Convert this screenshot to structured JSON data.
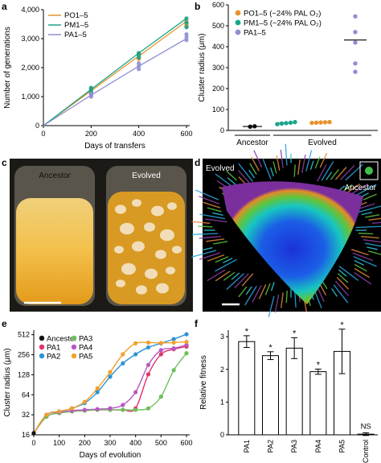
{
  "panel_labels": [
    "a",
    "b",
    "c",
    "d",
    "e",
    "f"
  ],
  "colors": {
    "PO": "#e8922c",
    "PM": "#1aa58b",
    "PA": "#8f8fd4",
    "ancestor": "#111111",
    "PA1": "#e0336b",
    "PA2": "#2d93d4",
    "PA3": "#6cc05a",
    "PA4": "#b658c4",
    "PA5": "#f1a12a"
  },
  "chart_data": [
    {
      "panel": "a",
      "type": "line",
      "xlabel": "Days of transfers",
      "ylabel": "Number of generations",
      "xlim": [
        0,
        600
      ],
      "ylim": [
        0,
        4000
      ],
      "xticks": [
        0,
        200,
        400,
        600
      ],
      "yticks": [
        0,
        1000,
        2000,
        3000,
        4000
      ],
      "ytick_labels": [
        "0",
        "1,000",
        "2,000",
        "3,000",
        "4,000"
      ],
      "legend": "top-left",
      "series": [
        {
          "name": "PO1–5",
          "color_key": "PO",
          "x": [
            0,
            200,
            400,
            600
          ],
          "y": [
            0,
            1200,
            2400,
            3600
          ],
          "points": [
            [
              200,
              1100
            ],
            [
              200,
              1150
            ],
            [
              200,
              1200
            ],
            [
              200,
              1250
            ],
            [
              200,
              1300
            ],
            [
              400,
              2300
            ],
            [
              400,
              2350
            ],
            [
              400,
              2400
            ],
            [
              400,
              2450
            ],
            [
              400,
              2500
            ],
            [
              600,
              3400
            ],
            [
              600,
              3450
            ],
            [
              600,
              3500
            ],
            [
              600,
              3550
            ],
            [
              600,
              3600
            ]
          ]
        },
        {
          "name": "PM1–5",
          "color_key": "PM",
          "x": [
            0,
            200,
            400,
            600
          ],
          "y": [
            0,
            1250,
            2500,
            3700
          ],
          "points": [
            [
              200,
              1150
            ],
            [
              200,
              1250
            ],
            [
              200,
              1300
            ],
            [
              400,
              2350
            ],
            [
              400,
              2450
            ],
            [
              400,
              2500
            ],
            [
              600,
              3400
            ],
            [
              600,
              3550
            ],
            [
              600,
              3700
            ]
          ]
        },
        {
          "name": "PA1–5",
          "color_key": "PA",
          "x": [
            0,
            200,
            400,
            600
          ],
          "y": [
            0,
            1050,
            2050,
            3000
          ],
          "points": [
            [
              200,
              1000
            ],
            [
              200,
              1050
            ],
            [
              200,
              1100
            ],
            [
              400,
              1950
            ],
            [
              400,
              2050
            ],
            [
              400,
              2150
            ],
            [
              600,
              2950
            ],
            [
              600,
              3050
            ],
            [
              600,
              3150
            ]
          ]
        }
      ]
    },
    {
      "panel": "b",
      "type": "scatter",
      "ylabel": "Cluster radius (μm)",
      "ylim": [
        0,
        600
      ],
      "yticks": [
        0,
        100,
        200,
        300,
        400,
        500,
        600
      ],
      "group_labels": [
        "Ancestor",
        "Evolved"
      ],
      "legend": "top-left",
      "legend_entries": [
        "PO1–5 (~24% PAL O₂)",
        "PM1–5 (~24% PAL O₂)",
        "PA1–5"
      ],
      "groups": [
        {
          "name": "Ancestor",
          "color_key": "ancestor",
          "values": [
            18,
            20
          ],
          "mean": 19
        },
        {
          "name": "PO1–5 (~24% PAL O₂)",
          "color_key": "PM",
          "values": [
            30,
            33,
            35,
            37,
            40
          ],
          "mean": 35
        },
        {
          "name": "PM1–5 (~24% PAL O₂)",
          "color_key": "PO",
          "values": [
            36,
            37,
            38,
            39,
            40
          ],
          "mean": 38
        },
        {
          "name": "PA1–5",
          "color_key": "PA",
          "values": [
            280,
            320,
            420,
            470,
            545
          ],
          "mean": 432
        }
      ]
    },
    {
      "panel": "e",
      "type": "line",
      "xlabel": "Days of evolution",
      "ylabel": "Cluster radius (μm)",
      "yscale": "log2",
      "xlim": [
        0,
        600
      ],
      "ylim": [
        16,
        600
      ],
      "xticks": [
        0,
        100,
        200,
        300,
        400,
        500,
        600
      ],
      "yticks": [
        16,
        32,
        64,
        128,
        256,
        512
      ],
      "legend": "top-left",
      "series": [
        {
          "name": "Ancestor",
          "color_key": "ancestor",
          "x": [
            0
          ],
          "y": [
            17
          ]
        },
        {
          "name": "PA1",
          "color_key": "PA1",
          "x": [
            0,
            50,
            100,
            150,
            200,
            250,
            300,
            350,
            400,
            450,
            500,
            550,
            600
          ],
          "y": [
            17,
            30,
            34,
            36,
            37,
            38,
            38,
            38,
            40,
            130,
            260,
            310,
            340
          ]
        },
        {
          "name": "PA2",
          "color_key": "PA2",
          "x": [
            0,
            50,
            100,
            150,
            200,
            250,
            300,
            350,
            400,
            450,
            500,
            550,
            600
          ],
          "y": [
            17,
            32,
            36,
            40,
            48,
            70,
            120,
            190,
            260,
            330,
            380,
            440,
            520
          ]
        },
        {
          "name": "PA3",
          "color_key": "PA3",
          "x": [
            0,
            50,
            100,
            150,
            200,
            250,
            300,
            350,
            400,
            450,
            500,
            550,
            600
          ],
          "y": [
            17,
            30,
            34,
            36,
            37,
            38,
            38,
            38,
            38,
            40,
            60,
            150,
            270
          ]
        },
        {
          "name": "PA4",
          "color_key": "PA4",
          "x": [
            0,
            50,
            100,
            150,
            200,
            250,
            300,
            350,
            400,
            450,
            500,
            550,
            600
          ],
          "y": [
            17,
            32,
            35,
            37,
            38,
            39,
            40,
            45,
            70,
            180,
            300,
            320,
            360
          ]
        },
        {
          "name": "PA5",
          "color_key": "PA5",
          "x": [
            0,
            50,
            100,
            150,
            200,
            250,
            300,
            350,
            400,
            450,
            500,
            550,
            600
          ],
          "y": [
            17,
            32,
            36,
            40,
            50,
            80,
            140,
            260,
            380,
            390,
            385,
            390,
            400
          ]
        }
      ]
    },
    {
      "panel": "f",
      "type": "bar",
      "ylabel": "Relative fitness",
      "ylim": [
        0,
        3.2
      ],
      "yticks": [
        0,
        1,
        2,
        3
      ],
      "categories": [
        "PA1",
        "PA2",
        "PA3",
        "PA4",
        "PA5",
        "Control"
      ],
      "values": [
        2.85,
        2.42,
        2.65,
        1.93,
        2.55,
        0.02
      ],
      "errors": [
        0.18,
        0.12,
        0.32,
        0.08,
        0.68,
        0.04
      ],
      "annotations": [
        "*",
        "*",
        "*",
        "*",
        "*",
        "NS"
      ]
    }
  ],
  "photo_c": {
    "labels": [
      "Ancestor",
      "Evolved"
    ]
  },
  "photo_d": {
    "label": "Evolved",
    "inset_label": "Ancestor"
  }
}
